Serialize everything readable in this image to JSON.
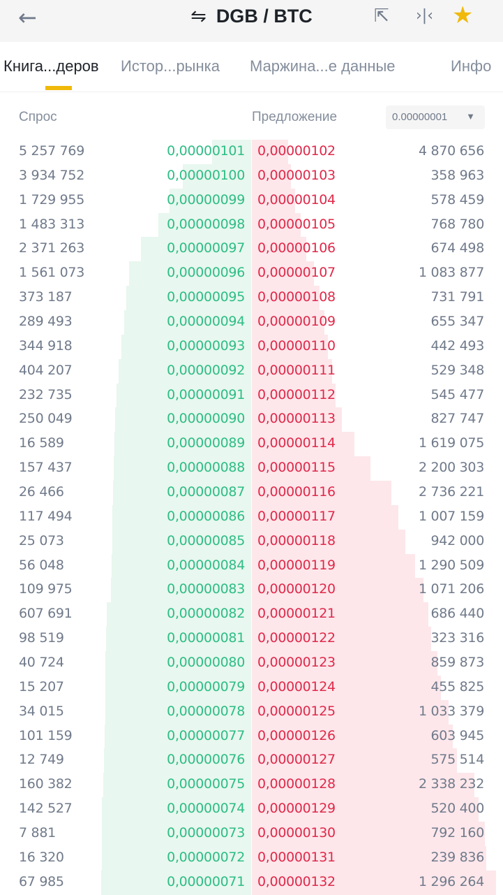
{
  "header": {
    "title": "DGB / BTC",
    "back_icon": "arrow-left-icon",
    "swap_icon": "swap-arrows-icon",
    "share_icon": "share-icon",
    "compare_icon": "collapse-icon",
    "favorite_icon": "star-icon",
    "favorite_color": "#F0B90B"
  },
  "tabs": [
    {
      "label": "Книга...деров",
      "active": true
    },
    {
      "label": "Истор...рынка"
    },
    {
      "label": "Маржина...е данные"
    },
    {
      "label": "Инфо"
    }
  ],
  "book": {
    "bid_header": "Спрос",
    "ask_header": "Предложение",
    "precision": "0.00000001",
    "colors": {
      "bid": "#2EBD85",
      "ask": "#E0294A",
      "bid_bg": "#E8F7EF",
      "ask_bg": "#FDE7EB"
    },
    "rows": [
      {
        "bid_qty": "5 257 769",
        "bid_price": "0,00000101",
        "ask_price": "0,00000102",
        "ask_qty": "4 870 656"
      },
      {
        "bid_qty": "3 934 752",
        "bid_price": "0,00000100",
        "ask_price": "0,00000103",
        "ask_qty": "358 963"
      },
      {
        "bid_qty": "1 729 955",
        "bid_price": "0,00000099",
        "ask_price": "0,00000104",
        "ask_qty": "578 459"
      },
      {
        "bid_qty": "1 483 313",
        "bid_price": "0,00000098",
        "ask_price": "0,00000105",
        "ask_qty": "768 780"
      },
      {
        "bid_qty": "2 371 263",
        "bid_price": "0,00000097",
        "ask_price": "0,00000106",
        "ask_qty": "674 498"
      },
      {
        "bid_qty": "1 561 073",
        "bid_price": "0,00000096",
        "ask_price": "0,00000107",
        "ask_qty": "1 083 877"
      },
      {
        "bid_qty": "373 187",
        "bid_price": "0,00000095",
        "ask_price": "0,00000108",
        "ask_qty": "731 791"
      },
      {
        "bid_qty": "289 493",
        "bid_price": "0,00000094",
        "ask_price": "0,00000109",
        "ask_qty": "655 347"
      },
      {
        "bid_qty": "344 918",
        "bid_price": "0,00000093",
        "ask_price": "0,00000110",
        "ask_qty": "442 493"
      },
      {
        "bid_qty": "404 207",
        "bid_price": "0,00000092",
        "ask_price": "0,00000111",
        "ask_qty": "529 348"
      },
      {
        "bid_qty": "232 735",
        "bid_price": "0,00000091",
        "ask_price": "0,00000112",
        "ask_qty": "545 477"
      },
      {
        "bid_qty": "250 049",
        "bid_price": "0,00000090",
        "ask_price": "0,00000113",
        "ask_qty": "827 747"
      },
      {
        "bid_qty": "16 589",
        "bid_price": "0,00000089",
        "ask_price": "0,00000114",
        "ask_qty": "1 619 075"
      },
      {
        "bid_qty": "157 437",
        "bid_price": "0,00000088",
        "ask_price": "0,00000115",
        "ask_qty": "2 200 303"
      },
      {
        "bid_qty": "26 466",
        "bid_price": "0,00000087",
        "ask_price": "0,00000116",
        "ask_qty": "2 736 221"
      },
      {
        "bid_qty": "117 494",
        "bid_price": "0,00000086",
        "ask_price": "0,00000117",
        "ask_qty": "1 007 159"
      },
      {
        "bid_qty": "25 073",
        "bid_price": "0,00000085",
        "ask_price": "0,00000118",
        "ask_qty": "942 000"
      },
      {
        "bid_qty": "56 048",
        "bid_price": "0,00000084",
        "ask_price": "0,00000119",
        "ask_qty": "1 290 509"
      },
      {
        "bid_qty": "109 975",
        "bid_price": "0,00000083",
        "ask_price": "0,00000120",
        "ask_qty": "1 071 206"
      },
      {
        "bid_qty": "607 691",
        "bid_price": "0,00000082",
        "ask_price": "0,00000121",
        "ask_qty": "686 440"
      },
      {
        "bid_qty": "98 519",
        "bid_price": "0,00000081",
        "ask_price": "0,00000122",
        "ask_qty": "323 316"
      },
      {
        "bid_qty": "40 724",
        "bid_price": "0,00000080",
        "ask_price": "0,00000123",
        "ask_qty": "859 873"
      },
      {
        "bid_qty": "15 207",
        "bid_price": "0,00000079",
        "ask_price": "0,00000124",
        "ask_qty": "455 825"
      },
      {
        "bid_qty": "34 015",
        "bid_price": "0,00000078",
        "ask_price": "0,00000125",
        "ask_qty": "1 033 379"
      },
      {
        "bid_qty": "101 159",
        "bid_price": "0,00000077",
        "ask_price": "0,00000126",
        "ask_qty": "603 945"
      },
      {
        "bid_qty": "12 749",
        "bid_price": "0,00000076",
        "ask_price": "0,00000127",
        "ask_qty": "575 514"
      },
      {
        "bid_qty": "160 382",
        "bid_price": "0,00000075",
        "ask_price": "0,00000128",
        "ask_qty": "2 338 232"
      },
      {
        "bid_qty": "142 527",
        "bid_price": "0,00000074",
        "ask_price": "0,00000129",
        "ask_qty": "520 400"
      },
      {
        "bid_qty": "7 881",
        "bid_price": "0,00000073",
        "ask_price": "0,00000130",
        "ask_qty": "792 160"
      },
      {
        "bid_qty": "16 320",
        "bid_price": "0,00000072",
        "ask_price": "0,00000131",
        "ask_qty": "239 836"
      },
      {
        "bid_qty": "67 985",
        "bid_price": "0,00000071",
        "ask_price": "0,00000132",
        "ask_qty": "1 296 264"
      }
    ]
  }
}
